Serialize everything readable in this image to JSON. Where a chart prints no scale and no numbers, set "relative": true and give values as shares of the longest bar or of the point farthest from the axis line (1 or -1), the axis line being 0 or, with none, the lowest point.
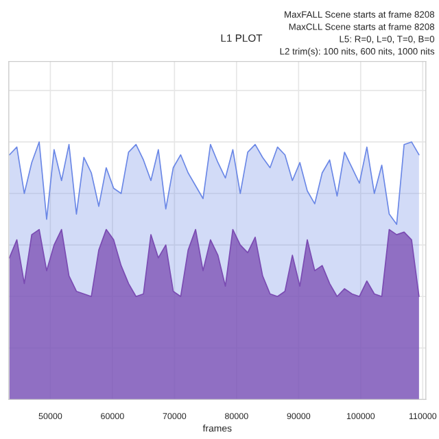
{
  "chart_data": {
    "type": "area",
    "title": "L1 PLOT",
    "xlabel": "frames",
    "annotations": [
      "MaxFALL Scene starts at frame 8208",
      "MaxCLL Scene starts at frame 8208",
      "L5: R=0, L=0, T=0, B=0",
      "L2 trim(s): 100 nits, 600 nits, 1000 nits"
    ],
    "relative": true,
    "grid": true,
    "tick_labels": "x",
    "xlim": [
      43300,
      110500
    ],
    "xticks": [
      50000,
      60000,
      70000,
      80000,
      90000,
      100000,
      110000
    ],
    "x": [
      43400,
      44600,
      45800,
      47000,
      48200,
      49400,
      50600,
      51800,
      53000,
      54200,
      55400,
      56600,
      57800,
      59000,
      60200,
      61400,
      62600,
      63800,
      65000,
      66200,
      67400,
      68600,
      69800,
      71000,
      72200,
      73400,
      74600,
      75800,
      77000,
      78200,
      79400,
      80600,
      81800,
      83000,
      84200,
      85400,
      86600,
      87800,
      89000,
      90200,
      91400,
      92600,
      93800,
      95000,
      96200,
      97400,
      98600,
      99800,
      101000,
      102200,
      103400,
      104600,
      105800,
      107000,
      108200,
      109400
    ],
    "series": [
      {
        "color": "#6a87e6",
        "values": [
          0.95,
          0.98,
          0.8,
          0.92,
          1.0,
          0.7,
          0.97,
          0.85,
          0.99,
          0.72,
          0.94,
          0.88,
          0.75,
          0.9,
          0.82,
          0.8,
          0.96,
          0.99,
          0.93,
          0.85,
          0.97,
          0.74,
          0.9,
          0.95,
          0.88,
          0.83,
          0.78,
          0.99,
          0.92,
          0.86,
          0.97,
          0.8,
          0.96,
          0.99,
          0.94,
          0.9,
          0.98,
          0.95,
          0.85,
          0.92,
          0.81,
          0.76,
          0.88,
          0.93,
          0.79,
          0.96,
          0.9,
          0.84,
          0.98,
          0.8,
          0.91,
          0.72,
          0.68,
          0.99,
          1.0,
          0.95
        ]
      },
      {
        "color": "#7a4bb2",
        "values": [
          0.55,
          0.62,
          0.45,
          0.64,
          0.66,
          0.5,
          0.6,
          0.66,
          0.48,
          0.42,
          0.41,
          0.4,
          0.58,
          0.66,
          0.62,
          0.52,
          0.45,
          0.4,
          0.41,
          0.64,
          0.55,
          0.6,
          0.42,
          0.4,
          0.58,
          0.66,
          0.5,
          0.62,
          0.56,
          0.44,
          0.66,
          0.6,
          0.57,
          0.63,
          0.48,
          0.41,
          0.4,
          0.42,
          0.56,
          0.44,
          0.62,
          0.5,
          0.52,
          0.45,
          0.4,
          0.43,
          0.41,
          0.4,
          0.46,
          0.41,
          0.4,
          0.66,
          0.64,
          0.65,
          0.62,
          0.4
        ]
      }
    ]
  }
}
